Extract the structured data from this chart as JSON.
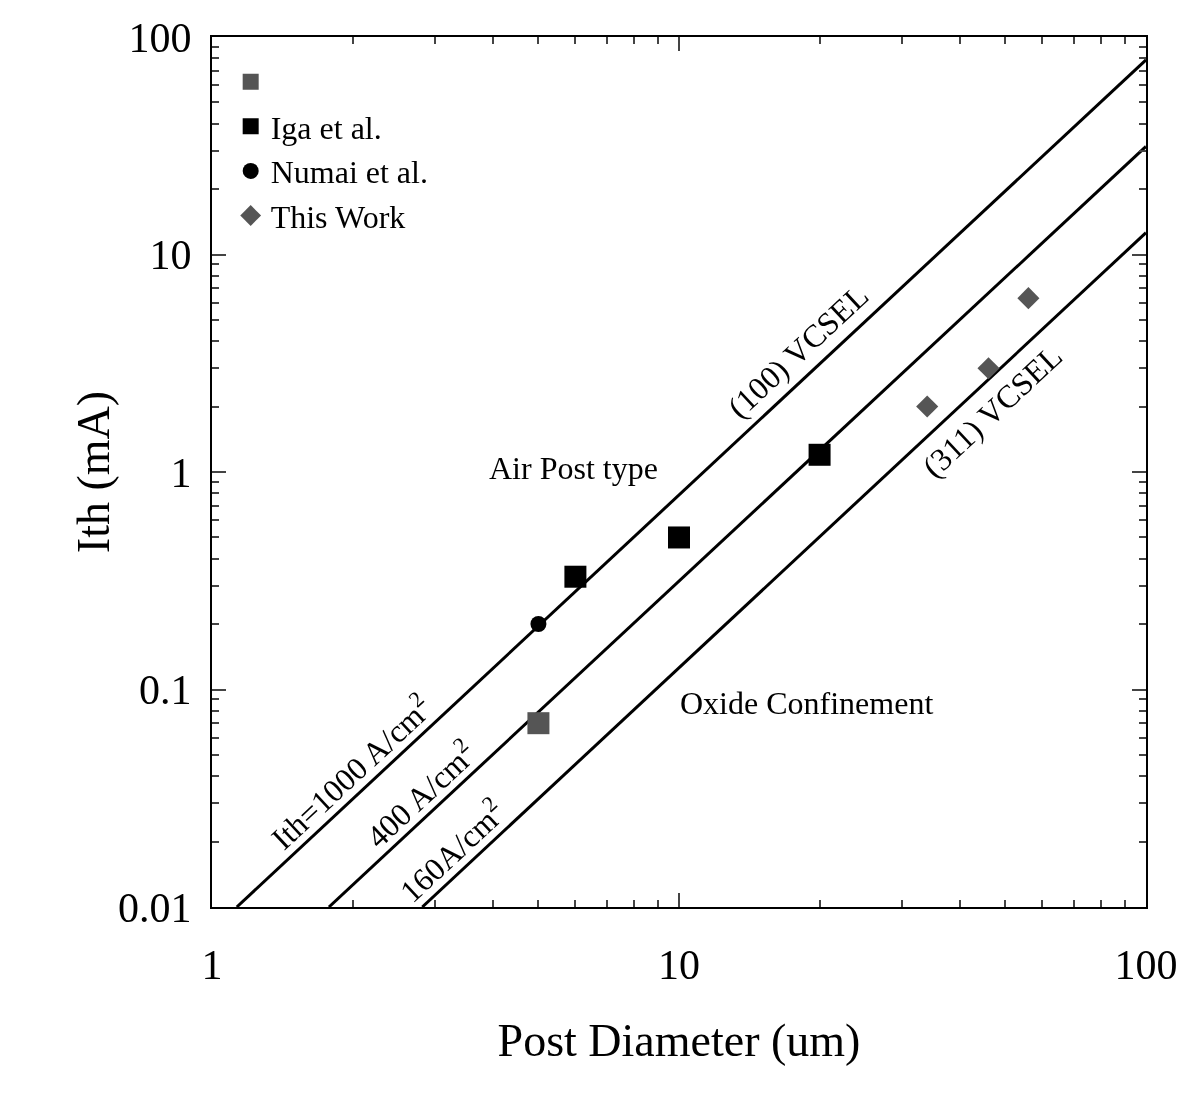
{
  "chart_data": {
    "type": "scatter",
    "xlabel": "Post Diameter (um)",
    "ylabel": "Ith (mA)",
    "log": "xy",
    "xlim": [
      1,
      100
    ],
    "xticks": [
      1,
      10,
      100
    ],
    "ylim": [
      0.01,
      100
    ],
    "yticks": [
      0.01,
      0.1,
      1,
      10,
      100
    ],
    "grid": false,
    "legend": "top left",
    "series": [
      {
        "type": "line",
        "color": "#000000",
        "marker": "none",
        "line_style": "solid",
        "x": [
          1.13,
          100
        ],
        "values": [
          0.01,
          78.5
        ]
      },
      {
        "type": "line",
        "color": "#000000",
        "marker": "none",
        "line_style": "solid",
        "x": [
          1.78,
          100
        ],
        "values": [
          0.01,
          31.4
        ]
      },
      {
        "type": "line",
        "color": "#000000",
        "marker": "none",
        "line_style": "solid",
        "x": [
          2.82,
          100
        ],
        "values": [
          0.01,
          12.6
        ]
      },
      {
        "type": "scatter",
        "color": "#555555",
        "marker": "square",
        "x": [
          5
        ],
        "values": [
          0.07
        ]
      },
      {
        "type": "scatter",
        "name": "Iga et al.",
        "color": "#000000",
        "marker": "square",
        "x": [
          6,
          10,
          20
        ],
        "values": [
          0.33,
          0.5,
          1.2
        ]
      },
      {
        "type": "scatter",
        "name": "Numai et al.",
        "color": "#000000",
        "marker": "circle",
        "x": [
          5
        ],
        "values": [
          0.2
        ]
      },
      {
        "type": "scatter",
        "name": "This Work",
        "color": "#555555",
        "marker": "diamond",
        "x": [
          34,
          46,
          56
        ],
        "values": [
          2,
          3,
          6.3
        ]
      }
    ],
    "annotations": [
      {
        "text": "Ith=1000 A/cm$^{2}$",
        "x": 2.13,
        "y": 0.0356
      },
      {
        "text": "400 A/cm$^{2}$",
        "x": 3.0,
        "y": 0.0283
      },
      {
        "text": "160A/cm$^{2}$",
        "x": 3.5,
        "y": 0.0154
      },
      {
        "text": "(100) VCSEL",
        "x": 19.5,
        "y": 2.98
      },
      {
        "text": "(311) VCSEL",
        "x": 43,
        "y": 2.32
      },
      "Air Post type",
      "Oxide Confinement"
    ]
  }
}
